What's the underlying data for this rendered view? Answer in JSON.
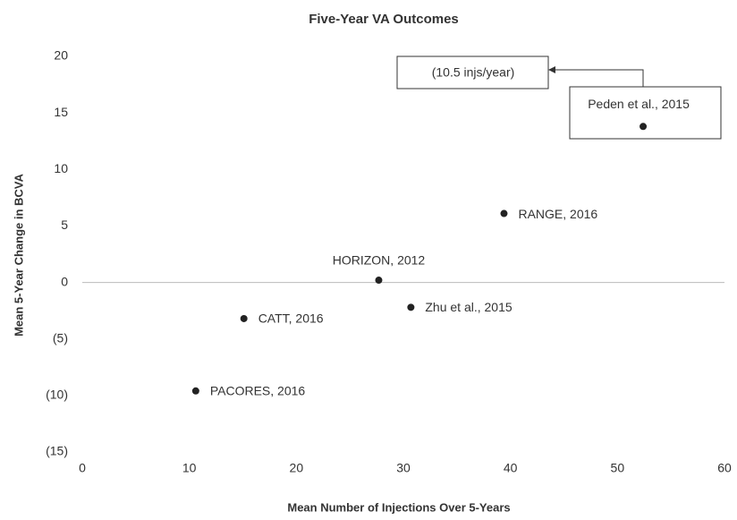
{
  "chart_data": {
    "type": "scatter",
    "title": "Five-Year VA Outcomes",
    "x_label": "Mean Number of Injections Over 5-Years",
    "y_label": "Mean 5-Year Change in BCVA",
    "x": [
      10.6,
      15.1,
      27.7,
      30.7,
      39.4,
      52.4
    ],
    "values": [
      -9.6,
      -3.2,
      0.2,
      -2.2,
      6.1,
      13.8
    ],
    "point_labels": [
      "PACORES, 2016",
      "CATT, 2016",
      "HORIZON, 2012",
      "Zhu et al., 2015",
      "RANGE, 2016",
      "Peden et al., 2015"
    ],
    "annotation": "(10.5 injs/year)",
    "color": "#222222",
    "xlim": [
      0,
      60
    ],
    "xticks": [
      0,
      10,
      20,
      30,
      40,
      50,
      60
    ],
    "ylim": [
      -15,
      20
    ],
    "yticks": [
      20,
      15,
      10,
      5,
      0,
      {
        "value": -5,
        "label": "(5)"
      },
      {
        "value": -10,
        "label": "(10)"
      },
      {
        "value": -15,
        "label": "(15)"
      }
    ],
    "grid": false
  }
}
